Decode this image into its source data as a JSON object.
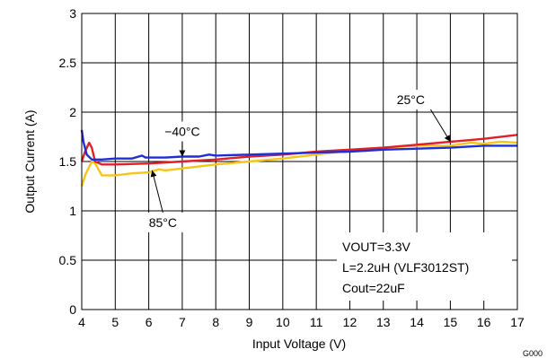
{
  "chart_data": {
    "type": "line",
    "xlabel": "Input Voltage (V)",
    "ylabel": "Output Current (A)",
    "xlim": [
      4,
      17
    ],
    "ylim": [
      0,
      3
    ],
    "xticks": [
      4,
      5,
      6,
      7,
      8,
      9,
      10,
      11,
      12,
      13,
      14,
      15,
      16,
      17
    ],
    "yticks": [
      0,
      0.5,
      1,
      1.5,
      2,
      2.5,
      3
    ],
    "ytick_labels": [
      "0",
      "0.5",
      "1",
      "1.5",
      "2",
      "2.5",
      "3"
    ],
    "grid": true,
    "series": [
      {
        "name": "−40°C",
        "color": "#1f2fd6",
        "points": [
          [
            4.0,
            1.82
          ],
          [
            4.05,
            1.7
          ],
          [
            4.15,
            1.57
          ],
          [
            4.3,
            1.52
          ],
          [
            4.6,
            1.52
          ],
          [
            5.0,
            1.53
          ],
          [
            5.5,
            1.53
          ],
          [
            5.8,
            1.56
          ],
          [
            5.9,
            1.54
          ],
          [
            6.5,
            1.54
          ],
          [
            7.0,
            1.55
          ],
          [
            7.5,
            1.55
          ],
          [
            7.8,
            1.57
          ],
          [
            8.0,
            1.56
          ],
          [
            9.0,
            1.57
          ],
          [
            10.0,
            1.58
          ],
          [
            11.0,
            1.59
          ],
          [
            12.0,
            1.6
          ],
          [
            12.5,
            1.61
          ],
          [
            13.0,
            1.62
          ],
          [
            14.0,
            1.63
          ],
          [
            15.0,
            1.64
          ],
          [
            16.0,
            1.66
          ],
          [
            16.5,
            1.66
          ],
          [
            17.0,
            1.66
          ]
        ]
      },
      {
        "name": "25°C",
        "color": "#e01f2a",
        "points": [
          [
            4.0,
            1.5
          ],
          [
            4.1,
            1.6
          ],
          [
            4.22,
            1.69
          ],
          [
            4.3,
            1.64
          ],
          [
            4.4,
            1.5
          ],
          [
            4.6,
            1.47
          ],
          [
            5.0,
            1.47
          ],
          [
            6.0,
            1.48
          ],
          [
            7.0,
            1.5
          ],
          [
            8.0,
            1.52
          ],
          [
            9.0,
            1.55
          ],
          [
            10.0,
            1.57
          ],
          [
            11.0,
            1.6
          ],
          [
            12.0,
            1.62
          ],
          [
            13.0,
            1.64
          ],
          [
            14.0,
            1.67
          ],
          [
            15.0,
            1.7
          ],
          [
            16.0,
            1.73
          ],
          [
            17.0,
            1.77
          ]
        ]
      },
      {
        "name": "85°C",
        "color": "#f5c518",
        "points": [
          [
            4.0,
            1.25
          ],
          [
            4.1,
            1.36
          ],
          [
            4.3,
            1.5
          ],
          [
            4.4,
            1.48
          ],
          [
            4.6,
            1.36
          ],
          [
            5.0,
            1.36
          ],
          [
            5.5,
            1.38
          ],
          [
            6.0,
            1.39
          ],
          [
            6.3,
            1.42
          ],
          [
            6.5,
            1.41
          ],
          [
            7.0,
            1.43
          ],
          [
            8.0,
            1.47
          ],
          [
            9.0,
            1.5
          ],
          [
            10.0,
            1.53
          ],
          [
            11.0,
            1.57
          ],
          [
            12.0,
            1.61
          ],
          [
            13.0,
            1.64
          ],
          [
            14.0,
            1.66
          ],
          [
            15.0,
            1.66
          ],
          [
            15.6,
            1.69
          ],
          [
            16.0,
            1.68
          ],
          [
            16.5,
            1.7
          ],
          [
            17.0,
            1.69
          ]
        ]
      }
    ],
    "annotations": [
      {
        "text": "−40°C",
        "x": 7.0,
        "y": 1.55
      },
      {
        "text": "25°C",
        "x": 15.0,
        "y": 1.7
      },
      {
        "text": "85°C",
        "x": 6.1,
        "y": 1.41
      }
    ],
    "condition_lines": [
      "VOUT=3.3V",
      "L=2.2uH (VLF3012ST)",
      "Cout=22uF"
    ],
    "figure_id": "G000"
  }
}
